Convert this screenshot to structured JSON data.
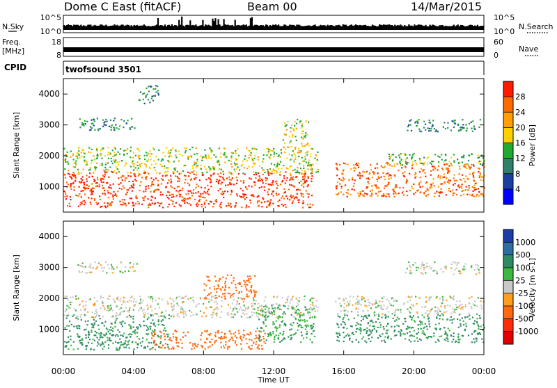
{
  "header": {
    "station": "Dome C East (fitACF)",
    "beam": "Beam 00",
    "date": "14/Mar/2015"
  },
  "noise_panel": {
    "left_label": "N.Sky",
    "right_label": "N.Search",
    "left_ticks": [
      "10^5",
      "10^0"
    ],
    "right_ticks": [
      "10^5",
      "10^0"
    ]
  },
  "freq_panel": {
    "left_label_1": "Freq.",
    "left_label_2": "[MHz]",
    "right_label": "Nave",
    "left_ticks": [
      "18",
      "8"
    ],
    "right_ticks": [
      "60",
      "0"
    ]
  },
  "cpid_panel": {
    "label": "CPID",
    "program": "twofsound 3501"
  },
  "power_panel": {
    "ylabel": "Slant Range [km]",
    "colorbar_label": "Power [dB]",
    "colorbar_ticks": [
      "28",
      "24",
      "20",
      "16",
      "12",
      "8",
      "4"
    ],
    "colorbar_colors": [
      "#ff1a00",
      "#ff6a00",
      "#ffa000",
      "#ffd000",
      "#22aa30",
      "#2f7f6a",
      "#1a3fa0",
      "#0000ff"
    ]
  },
  "velocity_panel": {
    "ylabel": "Slant Range [km]",
    "colorbar_label": "Velocity [m s-1]",
    "colorbar_ticks": [
      "1000",
      "500",
      "100",
      "25",
      "-25",
      "-100",
      "-500",
      "-1000"
    ],
    "colorbar_colors": [
      "#1c3ca8",
      "#2e6e9e",
      "#2f8a64",
      "#3cb840",
      "#c8c8c8",
      "#ff9d1e",
      "#ff6a10",
      "#ff2a0a",
      "#e00000"
    ]
  },
  "time_axis": {
    "label": "Time UT",
    "ticks": [
      "00:00",
      "04:00",
      "08:00",
      "12:00",
      "16:00",
      "20:00",
      "00:00"
    ]
  },
  "chart_data": [
    {
      "type": "heatmap",
      "title": "Power",
      "xlabel": "Time UT",
      "ylabel": "Slant Range [km]",
      "x_range_hours": [
        0,
        24
      ],
      "ylim": [
        180,
        4500
      ],
      "yticks": [
        1000,
        2000,
        3000,
        4000
      ],
      "color_scale_label": "Power [dB]",
      "color_scale_ticks": [
        4,
        8,
        12,
        16,
        20,
        24,
        28
      ],
      "scatter_regions": [
        {
          "t0": 0.0,
          "t1": 14.2,
          "r0": 350,
          "r1": 1500,
          "level": 27
        },
        {
          "t0": 0.0,
          "t1": 14.5,
          "r0": 1450,
          "r1": 2300,
          "level": 15
        },
        {
          "t0": 0.8,
          "t1": 4.2,
          "r0": 2850,
          "r1": 3250,
          "level": 9
        },
        {
          "t0": 4.2,
          "t1": 5.4,
          "r0": 3700,
          "r1": 4300,
          "level": 9
        },
        {
          "t0": 12.5,
          "t1": 14.0,
          "r0": 2300,
          "r1": 3200,
          "level": 16
        },
        {
          "t0": 15.5,
          "t1": 24.0,
          "r0": 700,
          "r1": 1800,
          "level": 24
        },
        {
          "t0": 18.5,
          "t1": 24.0,
          "r0": 1700,
          "r1": 2100,
          "level": 12
        },
        {
          "t0": 19.5,
          "t1": 23.8,
          "r0": 2800,
          "r1": 3200,
          "level": 9
        }
      ]
    },
    {
      "type": "heatmap",
      "title": "Velocity",
      "xlabel": "Time UT",
      "ylabel": "Slant Range [km]",
      "x_range_hours": [
        0,
        24
      ],
      "ylim": [
        180,
        4500
      ],
      "yticks": [
        1000,
        2000,
        3000,
        4000
      ],
      "color_scale_label": "Velocity [m s-1]",
      "color_scale_ticks": [
        1000,
        500,
        100,
        25,
        -25,
        -100,
        -500,
        -1000
      ],
      "scatter_regions": [
        {
          "t0": 0.0,
          "t1": 6.0,
          "r0": 350,
          "r1": 1500,
          "level": 120
        },
        {
          "t0": 0.0,
          "t1": 14.5,
          "r0": 1400,
          "r1": 2100,
          "level": 0
        },
        {
          "t0": 5.0,
          "t1": 11.5,
          "r0": 380,
          "r1": 1000,
          "level": -180
        },
        {
          "t0": 11.0,
          "t1": 14.3,
          "r0": 600,
          "r1": 1800,
          "level": 90
        },
        {
          "t0": 8.0,
          "t1": 11.0,
          "r0": 2000,
          "r1": 2800,
          "level": -150
        },
        {
          "t0": 15.5,
          "t1": 24.0,
          "r0": 600,
          "r1": 1500,
          "level": 120
        },
        {
          "t0": 15.5,
          "t1": 24.0,
          "r0": 1500,
          "r1": 2100,
          "level": 0
        },
        {
          "t0": 0.8,
          "t1": 4.2,
          "r0": 2850,
          "r1": 3200,
          "level": 0
        },
        {
          "t0": 19.5,
          "t1": 23.8,
          "r0": 2800,
          "r1": 3200,
          "level": 0
        }
      ]
    }
  ]
}
